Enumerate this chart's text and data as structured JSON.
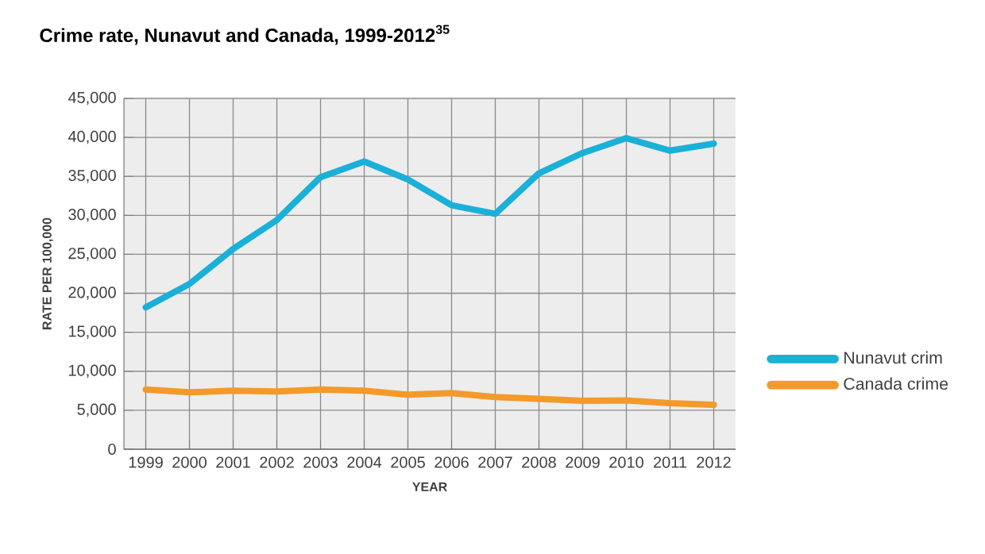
{
  "chart_data": {
    "type": "line",
    "title": "Crime rate, Nunavut and Canada, 1999-2012$^{35}$",
    "xlabel": "YEAR",
    "ylabel": "RATE PER 100,000",
    "categories": [
      "1999",
      "2000",
      "2001",
      "2002",
      "2003",
      "2004",
      "2005",
      "2006",
      "2007",
      "2008",
      "2009",
      "2010",
      "2011",
      "2012"
    ],
    "series": [
      {
        "name": "Nunavut crim",
        "color": "#1ab0d8",
        "values": [
          18200,
          21200,
          25700,
          29400,
          34900,
          36900,
          34600,
          31300,
          30200,
          35400,
          38000,
          39900,
          38300,
          39200
        ]
      },
      {
        "name": "Canada crime",
        "color": "#f39a2b",
        "values": [
          7650,
          7300,
          7500,
          7400,
          7650,
          7500,
          7000,
          7200,
          6700,
          6450,
          6200,
          6250,
          5900,
          5700
        ]
      }
    ],
    "ylim": [
      0,
      45000
    ],
    "yticks": [
      0,
      {
        "value": 5000,
        "label": "5,000"
      },
      {
        "value": 10000,
        "label": "10,000"
      },
      {
        "value": 15000,
        "label": "15,000"
      },
      {
        "value": 20000,
        "label": "20,000"
      },
      {
        "value": 25000,
        "label": "25,000"
      },
      {
        "value": 30000,
        "label": "30,000"
      },
      {
        "value": 35000,
        "label": "35,000"
      },
      {
        "value": 40000,
        "label": "40,000"
      },
      {
        "value": 45000,
        "label": "45,000"
      }
    ],
    "grid": true,
    "legend": "right",
    "marker": "none",
    "line_style": "solid"
  }
}
